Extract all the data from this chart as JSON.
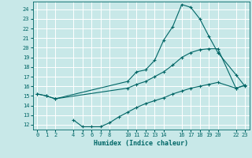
{
  "xlabel": "Humidex (Indice chaleur)",
  "bg_color": "#c8e8e8",
  "grid_color": "#ffffff",
  "line_color": "#006666",
  "line1_x": [
    0,
    1,
    2,
    10,
    11,
    12,
    13,
    14,
    15,
    16,
    17,
    18,
    19,
    20,
    22,
    23
  ],
  "line1_y": [
    15.2,
    15.0,
    14.7,
    16.5,
    17.5,
    17.7,
    18.7,
    20.8,
    22.2,
    24.5,
    24.2,
    23.0,
    21.2,
    19.5,
    17.2,
    16.0
  ],
  "line2_x": [
    0,
    1,
    2,
    10,
    11,
    12,
    13,
    14,
    15,
    16,
    17,
    18,
    19,
    20,
    22,
    23
  ],
  "line2_y": [
    15.2,
    15.0,
    14.7,
    15.8,
    16.2,
    16.5,
    17.0,
    17.5,
    18.2,
    19.0,
    19.5,
    19.8,
    19.9,
    19.9,
    15.8,
    16.1
  ],
  "line3_x": [
    4,
    5,
    6,
    7,
    8,
    9,
    10,
    11,
    12,
    13,
    14,
    15,
    16,
    17,
    18,
    19,
    20,
    22,
    23
  ],
  "line3_y": [
    12.5,
    11.8,
    11.8,
    11.8,
    12.2,
    12.8,
    13.3,
    13.8,
    14.2,
    14.5,
    14.8,
    15.2,
    15.5,
    15.8,
    16.0,
    16.2,
    16.4,
    15.8,
    16.1
  ],
  "xlim": [
    -0.5,
    23.5
  ],
  "ylim": [
    11.5,
    24.8
  ],
  "xticks": [
    0,
    1,
    2,
    4,
    5,
    6,
    7,
    8,
    10,
    11,
    12,
    13,
    14,
    16,
    17,
    18,
    19,
    20,
    22,
    23
  ],
  "yticks": [
    12,
    13,
    14,
    15,
    16,
    17,
    18,
    19,
    20,
    21,
    22,
    23,
    24
  ]
}
